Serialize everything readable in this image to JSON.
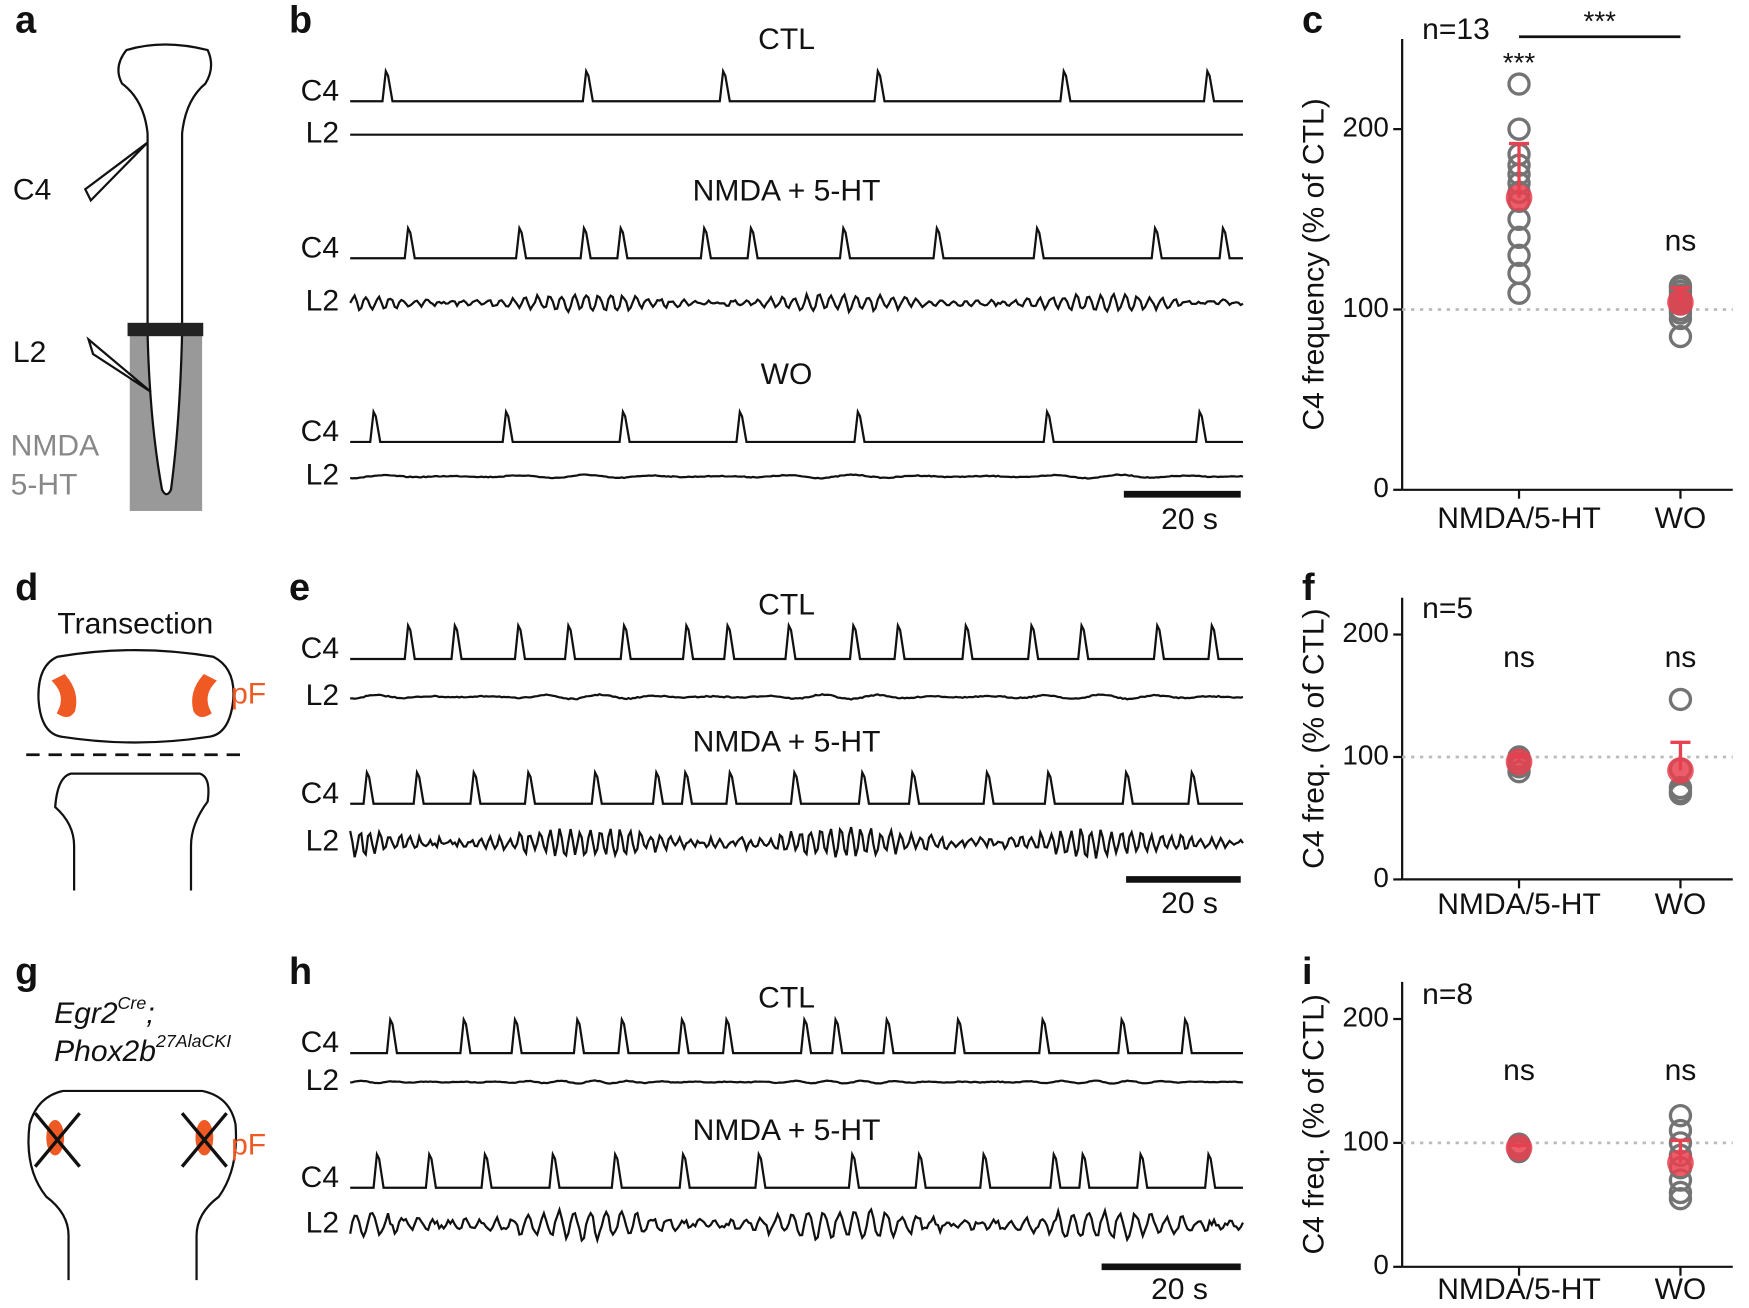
{
  "panel_letters": [
    "a",
    "b",
    "c",
    "d",
    "e",
    "f",
    "g",
    "h",
    "i"
  ],
  "panel_a": {
    "electrodes": [
      "C4",
      "L2"
    ],
    "drugs": [
      "NMDA",
      "5-HT"
    ]
  },
  "panel_b": {
    "traces": [
      {
        "condition": "CTL",
        "channels": [
          "C4",
          "L2"
        ]
      },
      {
        "condition": "NMDA + 5-HT",
        "channels": [
          "C4",
          "L2"
        ]
      },
      {
        "condition": "WO",
        "channels": [
          "C4",
          "L2"
        ]
      }
    ],
    "scale_bar": "20 s"
  },
  "panel_d": {
    "title": "Transection",
    "region": "pF"
  },
  "panel_e": {
    "traces": [
      {
        "condition": "CTL",
        "channels": [
          "C4",
          "L2"
        ]
      },
      {
        "condition": "NMDA + 5-HT",
        "channels": [
          "C4",
          "L2"
        ]
      }
    ],
    "scale_bar": "20 s"
  },
  "panel_g": {
    "genotype": [
      [
        "Egr2",
        "Cre",
        ";"
      ],
      [
        "Phox2b",
        "27AlaCKI"
      ]
    ],
    "region": "pF"
  },
  "panel_h": {
    "traces": [
      {
        "condition": "CTL",
        "channels": [
          "C4",
          "L2"
        ]
      },
      {
        "condition": "NMDA + 5-HT",
        "channels": [
          "C4",
          "L2"
        ]
      }
    ],
    "scale_bar": "20 s"
  },
  "chart_data": [
    {
      "type": "dot",
      "y_label": "C4 frequency (% of CTL)",
      "categories": [
        "NMDA/5-HT",
        "WO"
      ],
      "points": [
        [
          225,
          200,
          186,
          180,
          175,
          170,
          165,
          160,
          150,
          140,
          130,
          120,
          109
        ],
        [
          113,
          112,
          110,
          108,
          107,
          105,
          105,
          103,
          100,
          100,
          98,
          95,
          85
        ]
      ],
      "means": [
        162,
        104
      ],
      "errors": [
        30,
        8
      ],
      "ylim": [
        0,
        250
      ],
      "yticks": [
        0,
        100,
        200
      ],
      "reference": 100,
      "n_label": "n=13",
      "significance": [
        "***",
        "ns"
      ],
      "comparison": "***",
      "point_color": "#737373",
      "mean_color": "#e8414f",
      "reference_color": "#bbbbbb"
    },
    {
      "type": "dot",
      "y_label": "C4 freq. (% of CTL)",
      "categories": [
        "NMDA/5-HT",
        "WO"
      ],
      "points": [
        [
          100,
          98,
          95,
          92,
          88
        ],
        [
          147,
          90,
          75,
          72,
          70
        ]
      ],
      "means": [
        96,
        89
      ],
      "errors": [
        5,
        23
      ],
      "ylim": [
        0,
        230
      ],
      "yticks": [
        0,
        100,
        200
      ],
      "reference": 100,
      "n_label": "n=5",
      "significance": [
        "ns",
        "ns"
      ],
      "point_color": "#737373",
      "mean_color": "#e8414f",
      "reference_color": "#bbbbbb"
    },
    {
      "type": "dot",
      "y_label": "C4 freq. (% of CTL)",
      "categories": [
        "NMDA/5-HT",
        "WO"
      ],
      "points": [
        [
          99,
          98,
          97,
          97,
          96,
          95,
          95,
          93
        ],
        [
          122,
          110,
          100,
          90,
          80,
          70,
          60,
          55
        ]
      ],
      "means": [
        96,
        84
      ],
      "errors": [
        2,
        18
      ],
      "ylim": [
        0,
        230
      ],
      "yticks": [
        0,
        100,
        200
      ],
      "reference": 100,
      "n_label": "n=8",
      "significance": [
        "ns",
        "ns"
      ],
      "point_color": "#737373",
      "mean_color": "#e8414f",
      "reference_color": "#bbbbbb"
    }
  ]
}
